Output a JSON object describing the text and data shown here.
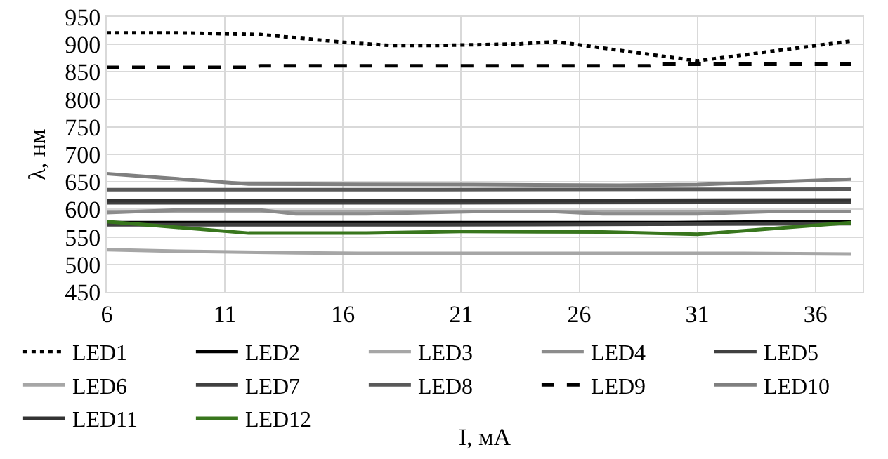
{
  "chart_data": {
    "type": "line",
    "xlabel": "I, мА",
    "ylabel": "λ, нм",
    "xlim": [
      6,
      38
    ],
    "xticks": [
      6,
      11,
      16,
      21,
      26,
      31,
      36
    ],
    "ylim": [
      450,
      950
    ],
    "yticks": [
      450,
      500,
      550,
      600,
      650,
      700,
      750,
      800,
      850,
      900,
      950
    ],
    "grid": true,
    "legend": "bottom",
    "marker": "none",
    "line_style": "solid",
    "series": [
      {
        "name": "LED1",
        "color": "#000000",
        "line_style": "dotted",
        "x": [
          6,
          9,
          12.5,
          16,
          18,
          20,
          23.5,
          25,
          31,
          37.5
        ],
        "values": [
          921,
          921,
          918,
          904,
          898,
          898,
          901,
          905,
          870,
          906
        ]
      },
      {
        "name": "LED2",
        "color": "#000000",
        "x": [
          6,
          20,
          30,
          37.5
        ],
        "values": [
          576,
          576,
          576,
          578
        ]
      },
      {
        "name": "LED3",
        "color": "#a6a6a6",
        "x": [
          6,
          37.5
        ],
        "values": [
          596,
          596
        ]
      },
      {
        "name": "LED4",
        "color": "#8c8c8c",
        "x": [
          6,
          9,
          12.5,
          14,
          17,
          21.5,
          25,
          27,
          31,
          34,
          37.5
        ],
        "values": [
          594,
          599,
          599,
          592,
          592,
          596,
          596,
          592,
          592,
          596,
          596
        ]
      },
      {
        "name": "LED5",
        "color": "#404040",
        "x": [
          6,
          20,
          37.5
        ],
        "values": [
          612,
          612,
          613
        ]
      },
      {
        "name": "LED6",
        "color": "#a6a6a6",
        "x": [
          6,
          9,
          14,
          17,
          33,
          37.5
        ],
        "values": [
          527,
          524,
          521,
          520,
          520,
          519
        ]
      },
      {
        "name": "LED7",
        "color": "#404040",
        "x": [
          6,
          20,
          37.5
        ],
        "values": [
          572,
          572,
          574
        ]
      },
      {
        "name": "LED8",
        "color": "#595959",
        "x": [
          6,
          20,
          37.5
        ],
        "values": [
          636,
          636,
          637
        ]
      },
      {
        "name": "LED9",
        "color": "#000000",
        "line_style": "dashed",
        "x": [
          6,
          12,
          12.5,
          29,
          29.5,
          37.5
        ],
        "values": [
          858,
          858,
          861,
          861,
          864,
          864
        ]
      },
      {
        "name": "LED10",
        "color": "#7f7f7f",
        "x": [
          6,
          12,
          21.5,
          27.7,
          31,
          37.5
        ],
        "values": [
          665,
          646,
          645,
          644,
          645,
          655
        ]
      },
      {
        "name": "LED11",
        "color": "#333333",
        "x": [
          6,
          20,
          37.5
        ],
        "values": [
          616,
          616,
          617
        ]
      },
      {
        "name": "LED12",
        "color": "#38761d",
        "x": [
          6,
          12,
          17,
          21,
          27,
          31,
          37.5
        ],
        "values": [
          578,
          557,
          557,
          560,
          559,
          555,
          576
        ]
      }
    ]
  }
}
